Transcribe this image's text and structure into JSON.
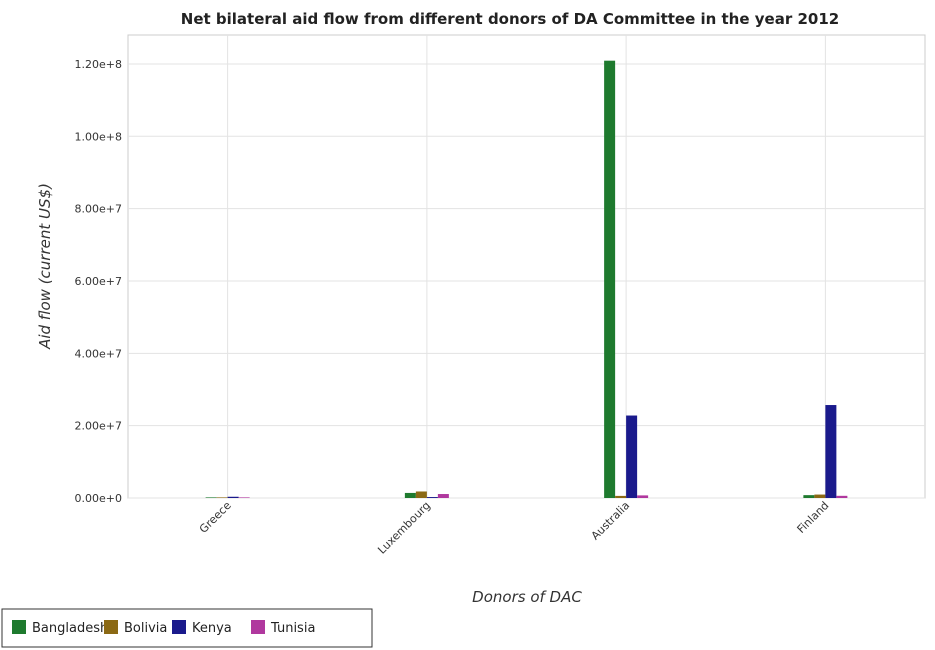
{
  "chart_data": {
    "type": "bar",
    "title": "Net bilateral aid flow from different donors of DA Committee in the year 2012",
    "xlabel": "Donors of DAC",
    "ylabel": "Aid flow (current US$)",
    "categories": [
      "Greece",
      "Luxembourg",
      "Australia",
      "Finland"
    ],
    "series": [
      {
        "name": "Bangladesh",
        "color": "#1e7a2e",
        "values": [
          160000,
          1400000,
          120900000,
          790000
        ]
      },
      {
        "name": "Bolivia",
        "color": "#8b6914",
        "values": [
          40000,
          1800000,
          580000,
          950000
        ]
      },
      {
        "name": "Kenya",
        "color": "#1a1a8c",
        "values": [
          340000,
          260000,
          22800000,
          25700000
        ]
      },
      {
        "name": "Tunisia",
        "color": "#b0389e",
        "values": [
          130000,
          1100000,
          720000,
          600000
        ]
      }
    ],
    "yticks": [
      "0.00e+0",
      "2.00e+7",
      "4.00e+7",
      "6.00e+7",
      "8.00e+7",
      "1.00e+8",
      "1.20e+8"
    ],
    "ylim": [
      0,
      128000000
    ],
    "grid": true,
    "legend_position": "bottom-left"
  }
}
